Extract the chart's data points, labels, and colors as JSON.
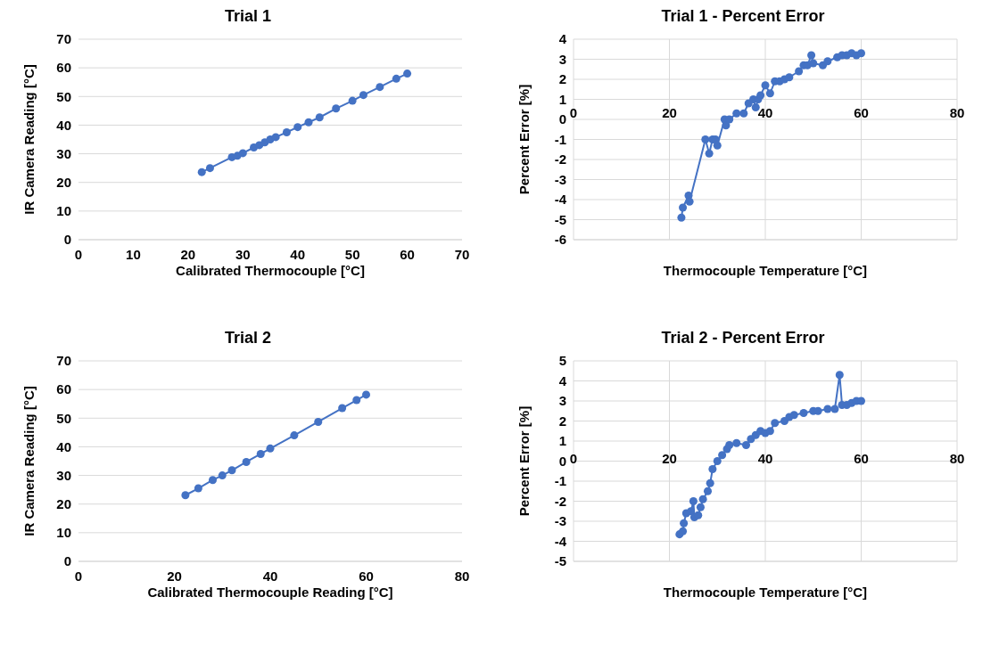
{
  "chart_data": [
    {
      "type": "line",
      "title": "Trial 1",
      "xlabel": "Calibrated Thermocouple [°C]",
      "ylabel": "IR Camera Reading [°C]",
      "marker": "circle",
      "grid": "y",
      "xlim": [
        0,
        70
      ],
      "xticks": [
        0,
        10,
        20,
        30,
        40,
        50,
        60,
        70
      ],
      "ylim": [
        0,
        70
      ],
      "yticks": [
        0,
        10,
        20,
        30,
        40,
        50,
        60,
        70
      ],
      "series": [
        {
          "color": "#4472c4",
          "x": [
            22.5,
            24,
            28,
            29,
            30,
            32,
            33,
            34,
            35,
            36,
            38,
            40,
            42,
            44,
            47,
            50,
            52,
            55,
            58,
            60
          ],
          "values": [
            23.6,
            25,
            28.8,
            29.3,
            30.2,
            32.2,
            33,
            34,
            35,
            35.8,
            37.5,
            39.3,
            41,
            42.7,
            45.8,
            48.5,
            50.5,
            53.3,
            56.2,
            58
          ]
        }
      ]
    },
    {
      "type": "line",
      "title": "Trial 1 - Percent Error",
      "xlabel": "Thermocouple Temperature [°C]",
      "ylabel": "Percent Error [%]",
      "marker": "circle",
      "grid": true,
      "xlim": [
        0,
        80
      ],
      "xticks": [
        0,
        20,
        40,
        60,
        80
      ],
      "ylim": [
        -6,
        4
      ],
      "yticks": [
        -6,
        -5,
        -4,
        -3,
        -2,
        -1,
        0,
        1,
        2,
        3,
        4
      ],
      "series": [
        {
          "color": "#4472c4",
          "x": [
            22.5,
            22.8,
            24,
            24.2,
            27.5,
            28.3,
            29,
            29.6,
            30,
            31.5,
            31.8,
            32.5,
            34,
            35.5,
            36.5,
            37.5,
            38,
            38.5,
            39,
            40,
            41,
            42,
            43,
            44,
            45,
            47,
            48,
            48.8,
            49.6,
            50,
            52,
            53,
            55,
            56,
            57,
            58,
            59,
            60
          ],
          "values": [
            -4.9,
            -4.4,
            -3.8,
            -4.1,
            -1,
            -1.7,
            -1,
            -1,
            -1.3,
            0,
            -0.3,
            0,
            0.3,
            0.3,
            0.8,
            1,
            0.6,
            1,
            1.2,
            1.7,
            1.3,
            1.9,
            1.9,
            2,
            2.1,
            2.4,
            2.7,
            2.7,
            3.2,
            2.8,
            2.7,
            2.9,
            3.1,
            3.2,
            3.2,
            3.3,
            3.2,
            3.3
          ]
        }
      ]
    },
    {
      "type": "line",
      "title": "Trial 2",
      "xlabel": "Calibrated Thermocouple Reading [°C]",
      "ylabel": "IR Camera Reading [°C]",
      "marker": "circle",
      "grid": "y",
      "xlim": [
        0,
        80
      ],
      "xticks": [
        0,
        20,
        40,
        60,
        80
      ],
      "ylim": [
        0,
        70
      ],
      "yticks": [
        0,
        10,
        20,
        30,
        40,
        50,
        60,
        70
      ],
      "series": [
        {
          "color": "#4472c4",
          "x": [
            22.3,
            25,
            28,
            30,
            32,
            35,
            38,
            40,
            45,
            50,
            55,
            58,
            60
          ],
          "values": [
            23.1,
            25.5,
            28.4,
            30,
            31.8,
            34.7,
            37.5,
            39.4,
            44,
            48.7,
            53.5,
            56.3,
            58.2
          ]
        }
      ]
    },
    {
      "type": "line",
      "title": "Trial 2 - Percent Error",
      "xlabel": "Thermocouple Temperature [°C]",
      "ylabel": "Percent Error [%]",
      "marker": "circle",
      "grid": true,
      "xlim": [
        0,
        80
      ],
      "xticks": [
        0,
        20,
        40,
        60,
        80
      ],
      "ylim": [
        -5,
        5
      ],
      "yticks": [
        -5,
        -4,
        -3,
        -2,
        -1,
        0,
        1,
        2,
        3,
        4,
        5
      ],
      "series": [
        {
          "color": "#4472c4",
          "x": [
            22.1,
            22.8,
            23,
            23.5,
            24.5,
            25,
            25.2,
            26,
            26.5,
            27,
            28,
            28.5,
            29,
            30,
            31,
            32,
            32.5,
            34,
            36,
            37,
            38,
            39,
            40,
            41,
            42,
            44,
            45,
            46,
            48,
            50,
            51,
            53,
            54.5,
            55.5,
            56,
            57,
            58,
            59,
            60
          ],
          "values": [
            -3.65,
            -3.5,
            -3.1,
            -2.6,
            -2.5,
            -2,
            -2.8,
            -2.7,
            -2.3,
            -1.9,
            -1.5,
            -1.1,
            -0.4,
            0,
            0.3,
            0.6,
            0.8,
            0.9,
            0.8,
            1.1,
            1.3,
            1.5,
            1.4,
            1.5,
            1.9,
            2,
            2.2,
            2.3,
            2.4,
            2.5,
            2.5,
            2.6,
            2.6,
            4.3,
            2.8,
            2.8,
            2.9,
            3,
            3
          ]
        }
      ]
    }
  ]
}
